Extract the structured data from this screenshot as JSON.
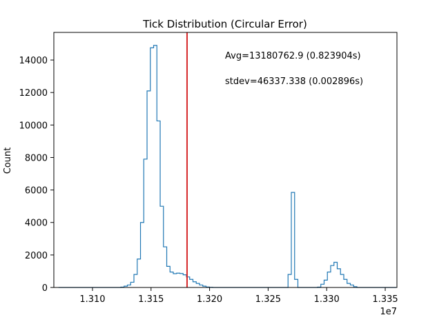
{
  "chart_data": {
    "type": "histogram",
    "title": "Tick Distribution (Circular Error)",
    "xlabel": "",
    "ylabel": "Count",
    "x_offset_label": "1e7",
    "xlim": [
      1.3067,
      1.336
    ],
    "ylim": [
      0,
      15700
    ],
    "x_ticks": [
      1.31,
      1.315,
      1.32,
      1.325,
      1.33,
      1.335
    ],
    "x_tick_labels": [
      "1.310",
      "1.315",
      "1.320",
      "1.325",
      "1.330",
      "1.335"
    ],
    "y_ticks": [
      0,
      2000,
      4000,
      6000,
      8000,
      10000,
      12000,
      14000
    ],
    "y_tick_labels": [
      "0",
      "2000",
      "4000",
      "6000",
      "8000",
      "10000",
      "12000",
      "14000"
    ],
    "grid": false,
    "series_color": "#1f77b4",
    "bins": {
      "start": 1.3071,
      "width": 0.00028,
      "counts": [
        0,
        0,
        0,
        0,
        0,
        0,
        0,
        0,
        0,
        0,
        0,
        0,
        0,
        0,
        0,
        0,
        0,
        0,
        0,
        20,
        80,
        150,
        320,
        800,
        1750,
        4000,
        7900,
        12100,
        14750,
        14900,
        10250,
        5000,
        2500,
        1300,
        950,
        850,
        880,
        860,
        780,
        650,
        500,
        350,
        250,
        150,
        80,
        30,
        10,
        0,
        0,
        0,
        0,
        0,
        0,
        0,
        0,
        0,
        0,
        0,
        0,
        0,
        0,
        0,
        0,
        0,
        0,
        0,
        0,
        0,
        0,
        0,
        800,
        5850,
        500,
        0,
        0,
        0,
        0,
        0,
        0,
        20,
        200,
        450,
        950,
        1350,
        1550,
        1150,
        800,
        500,
        250,
        150,
        50,
        0,
        0,
        0,
        0,
        0,
        0,
        0,
        0,
        0,
        0,
        0,
        0
      ]
    },
    "mean_line": {
      "x": 1.318076,
      "color": "#d62728"
    },
    "annotations": [
      "Avg=13180762.9 (0.823904s)",
      "stdev=46337.338 (0.002896s)"
    ]
  }
}
